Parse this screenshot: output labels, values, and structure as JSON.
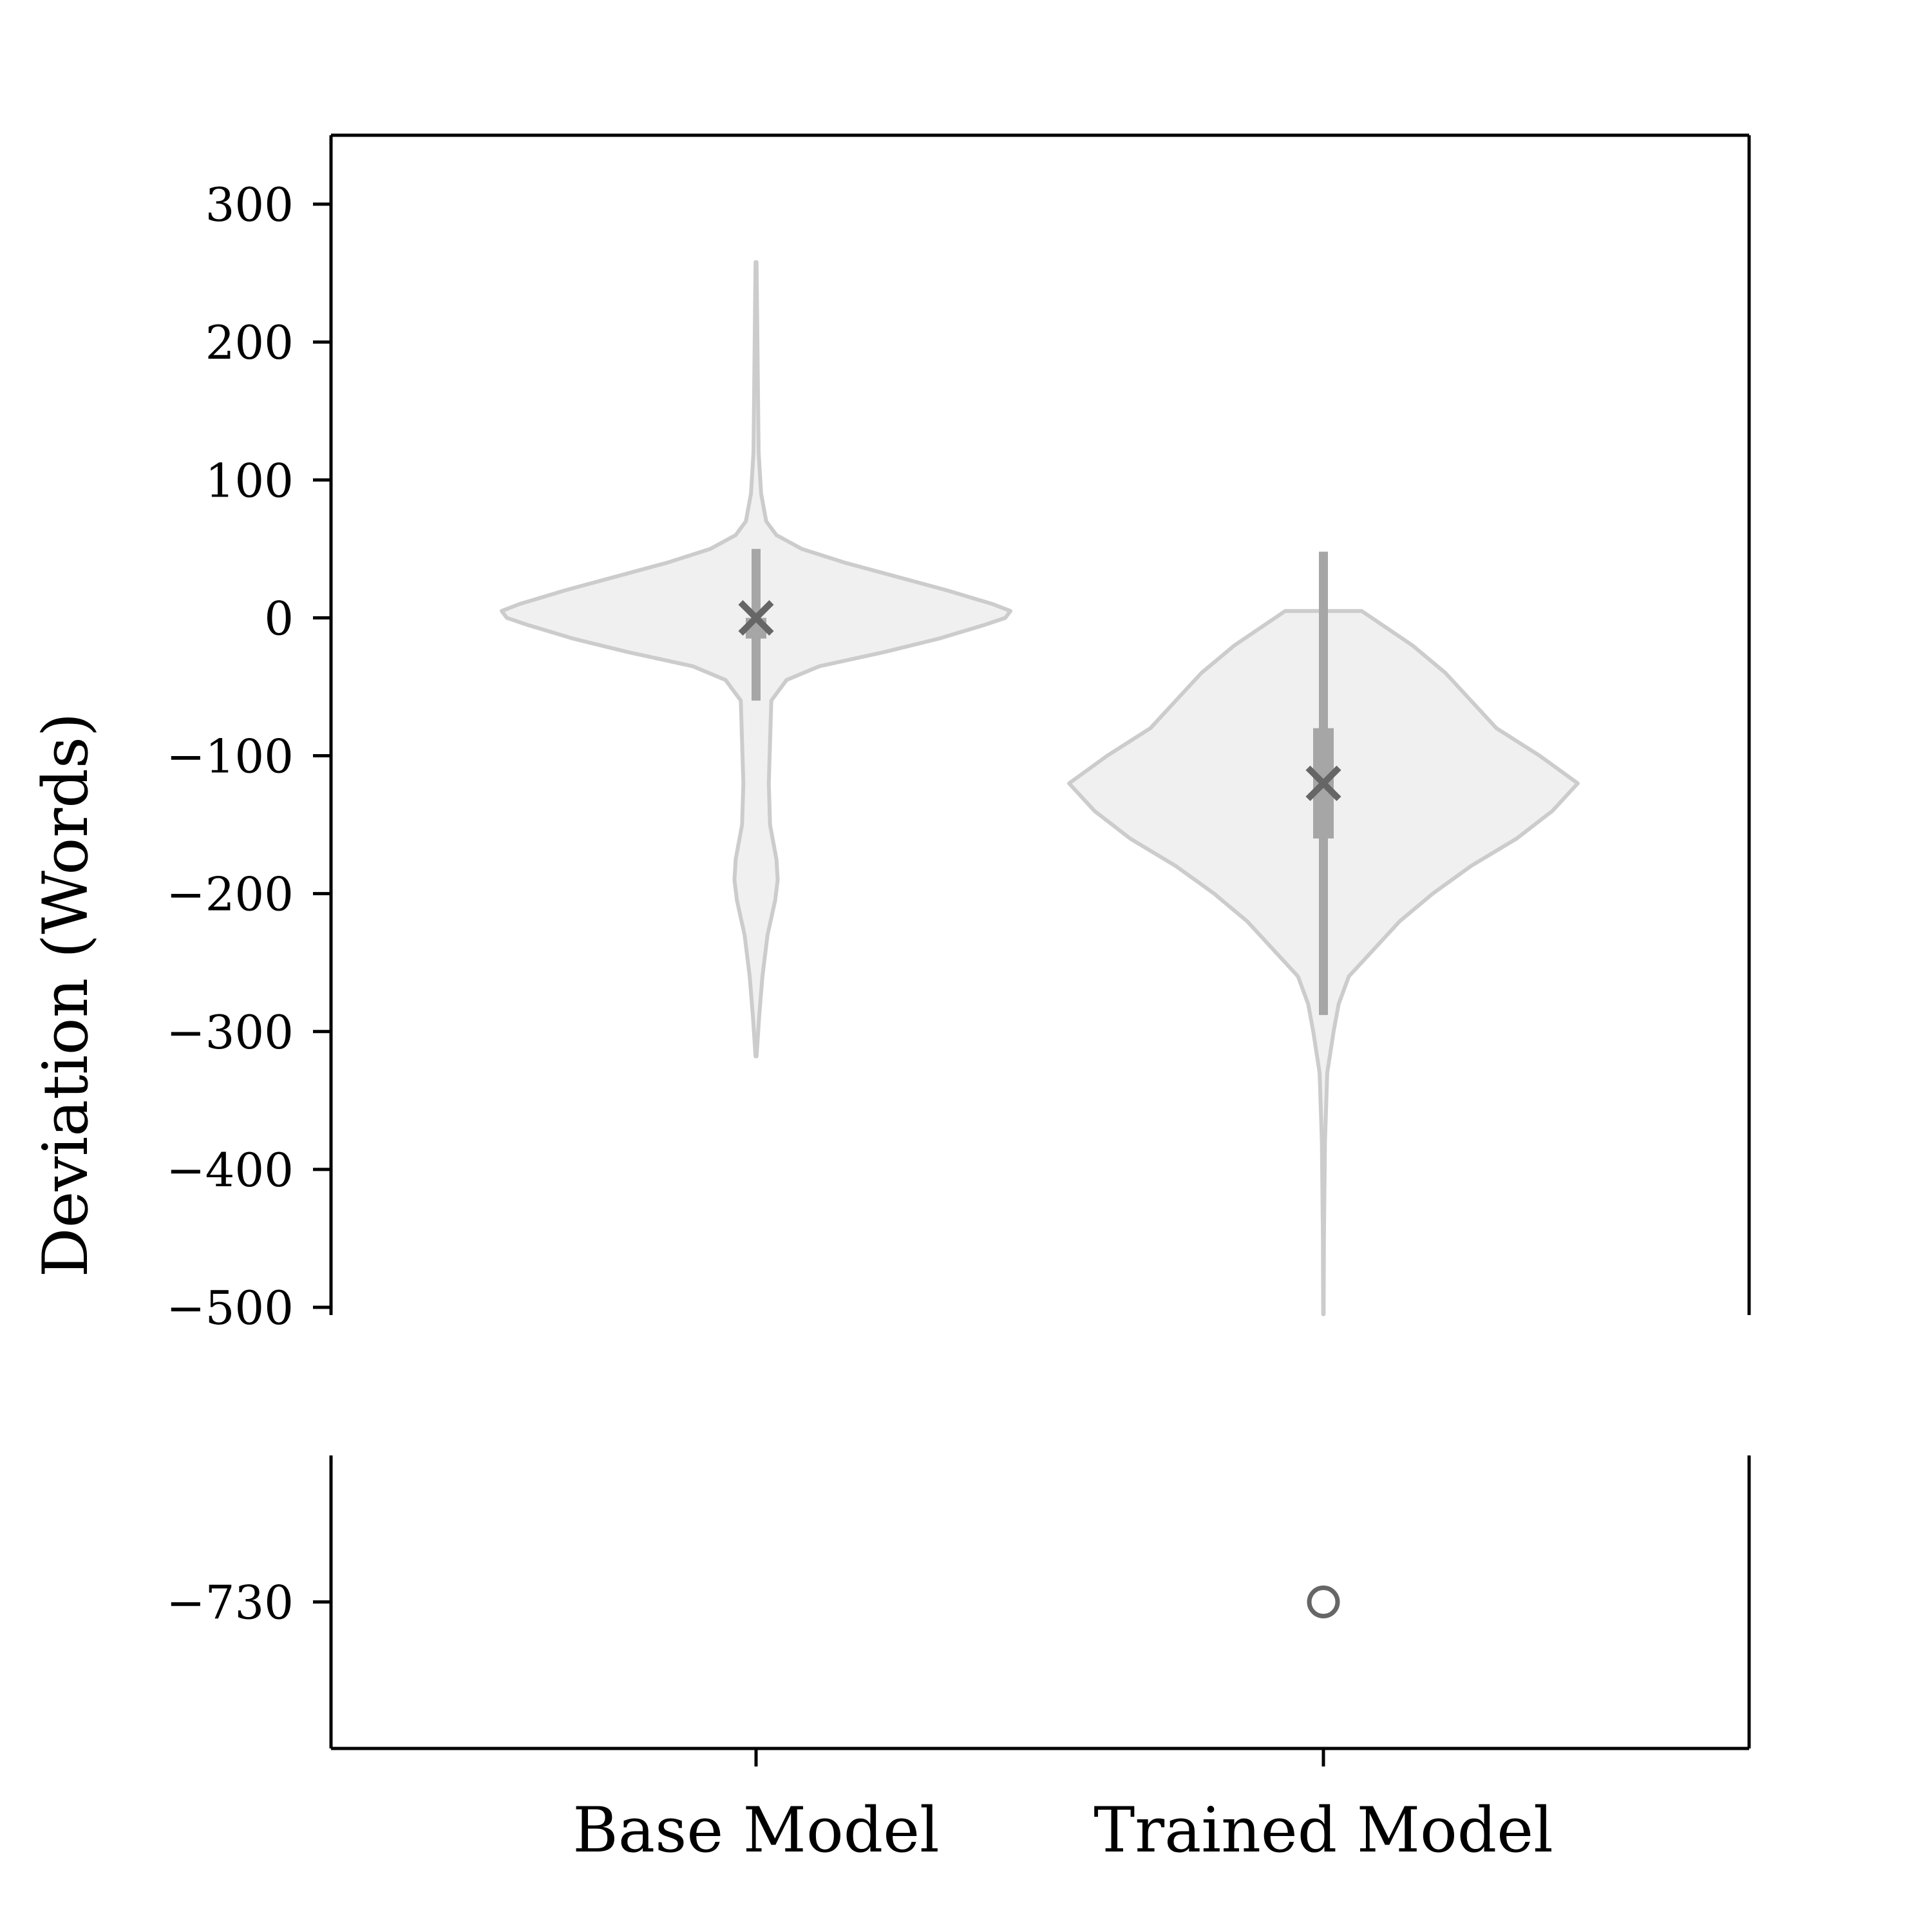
{
  "chart_data": {
    "type": "violin",
    "ylabel": "Deviation (Words)",
    "categories": [
      "Base Model",
      "Trained Model"
    ],
    "y_axis": {
      "broken": true,
      "upper_panel": {
        "ylim": [
          -500,
          350
        ],
        "ticks": [
          300,
          200,
          100,
          0,
          -100,
          -200,
          -300,
          -400,
          -500
        ]
      },
      "lower_panel": {
        "ylim": [
          -840,
          -620
        ],
        "ticks": [
          -730
        ]
      }
    },
    "series": [
      {
        "category": "Base Model",
        "mean": 0,
        "median": -2,
        "q1": -15,
        "q3": 0,
        "whisker_low": -60,
        "whisker_high": 50,
        "min": -318,
        "max": 258,
        "density_profile": [
          [
            258,
            0.002
          ],
          [
            120,
            0.01
          ],
          [
            90,
            0.02
          ],
          [
            70,
            0.04
          ],
          [
            60,
            0.08
          ],
          [
            50,
            0.18
          ],
          [
            40,
            0.35
          ],
          [
            30,
            0.55
          ],
          [
            20,
            0.75
          ],
          [
            10,
            0.93
          ],
          [
            5,
            1.0
          ],
          [
            0,
            0.98
          ],
          [
            -5,
            0.9
          ],
          [
            -15,
            0.72
          ],
          [
            -25,
            0.5
          ],
          [
            -35,
            0.25
          ],
          [
            -45,
            0.12
          ],
          [
            -60,
            0.06
          ],
          [
            -90,
            0.055
          ],
          [
            -120,
            0.05
          ],
          [
            -150,
            0.055
          ],
          [
            -175,
            0.08
          ],
          [
            -190,
            0.085
          ],
          [
            -205,
            0.075
          ],
          [
            -230,
            0.045
          ],
          [
            -260,
            0.025
          ],
          [
            -290,
            0.012
          ],
          [
            -318,
            0.002
          ]
        ]
      },
      {
        "category": "Trained Model",
        "mean": -120,
        "median": -120,
        "q1": -160,
        "q3": -80,
        "whisker_low": -288,
        "whisker_high": 48,
        "min": -505,
        "max": 5,
        "outliers": [
          -730
        ],
        "density_profile": [
          [
            5,
            0.15
          ],
          [
            -20,
            0.35
          ],
          [
            -40,
            0.48
          ],
          [
            -60,
            0.58
          ],
          [
            -80,
            0.68
          ],
          [
            -100,
            0.85
          ],
          [
            -120,
            1.0
          ],
          [
            -140,
            0.9
          ],
          [
            -160,
            0.76
          ],
          [
            -180,
            0.58
          ],
          [
            -200,
            0.43
          ],
          [
            -220,
            0.3
          ],
          [
            -240,
            0.2
          ],
          [
            -260,
            0.1
          ],
          [
            -280,
            0.06
          ],
          [
            -300,
            0.04
          ],
          [
            -330,
            0.015
          ],
          [
            -380,
            0.006
          ],
          [
            -450,
            0.002
          ],
          [
            -505,
            0.001
          ]
        ]
      }
    ],
    "colors": {
      "violin_fill": "#f0f0f0",
      "violin_edge": "#cccccc",
      "box": "#a6a6a6",
      "mean_marker": "#666666",
      "outlier": "#666666"
    },
    "markers": {
      "mean": "x",
      "outlier": "o"
    },
    "grid": false,
    "legend": "none"
  }
}
